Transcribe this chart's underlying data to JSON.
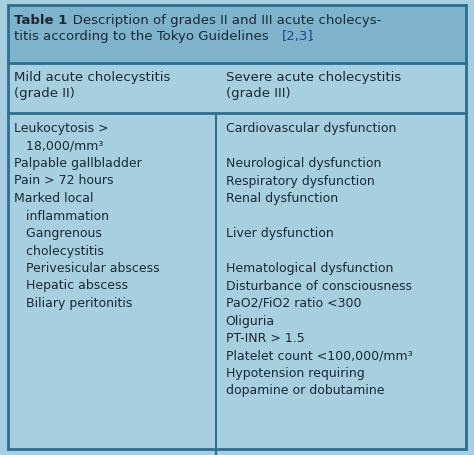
{
  "bg_color": "#a8cfe0",
  "title_bg": "#7fb3cb",
  "header_bg": "#a8cfe0",
  "content_bg": "#a8cfe0",
  "divider_color": "#2a7090",
  "text_color": "#1a2a35",
  "link_color": "#1a4a8a",
  "title_bold": "Table 1",
  "title_line1_rest": "   Description of grades II and III acute cholecys-",
  "title_line2": "titis according to the Tokyo Guidelines ",
  "title_link": "[2,3]",
  "title_dot": ".",
  "col1_header_line1": "Mild acute cholecystitis",
  "col1_header_line2": "(grade II)",
  "col2_header_line1": "Severe acute cholecystitis",
  "col2_header_line2": "(grade III)",
  "title_fontsize": 9.5,
  "header_fontsize": 9.5,
  "body_fontsize": 9.0,
  "col_split": 0.455,
  "left_items": [
    {
      "text": "Leukocytosis >",
      "indent": 0
    },
    {
      "text": "   18,000/mm³",
      "indent": 1
    },
    {
      "text": "Palpable gallbladder",
      "indent": 0
    },
    {
      "text": "Pain > 72 hours",
      "indent": 0
    },
    {
      "text": "Marked local",
      "indent": 0
    },
    {
      "text": "   inflammation",
      "indent": 1
    },
    {
      "text": "   Gangrenous",
      "indent": 1
    },
    {
      "text": "   cholecystitis",
      "indent": 1
    },
    {
      "text": "   Perivesicular abscess",
      "indent": 1
    },
    {
      "text": "   Hepatic abscess",
      "indent": 1
    },
    {
      "text": "   Biliary peritonitis",
      "indent": 1
    }
  ],
  "right_items": [
    {
      "text": "Cardiovascular dysfunction",
      "row": 0
    },
    {
      "text": "",
      "row": 1
    },
    {
      "text": "",
      "row": 2
    },
    {
      "text": "Neurological dysfunction",
      "row": 3
    },
    {
      "text": "Respiratory dysfunction",
      "row": 4
    },
    {
      "text": "Renal dysfunction",
      "row": 5
    },
    {
      "text": "",
      "row": 6
    },
    {
      "text": "Liver dysfunction",
      "row": 7
    },
    {
      "text": "",
      "row": 8
    },
    {
      "text": "",
      "row": 9
    },
    {
      "text": "Hematological dysfunction",
      "row": 10
    },
    {
      "text": "Disturbance of consciousness",
      "row": 11
    },
    {
      "text": "PaO2/FiO2 ratio <300",
      "row": 12
    },
    {
      "text": "Oliguria",
      "row": 13
    },
    {
      "text": "PT-INR > 1.5",
      "row": 14
    },
    {
      "text": "Platelet count <100,000/mm³",
      "row": 15
    },
    {
      "text": "Hypotension requiring",
      "row": 16
    },
    {
      "text": "dopamine or dobutamine",
      "row": 17
    }
  ]
}
